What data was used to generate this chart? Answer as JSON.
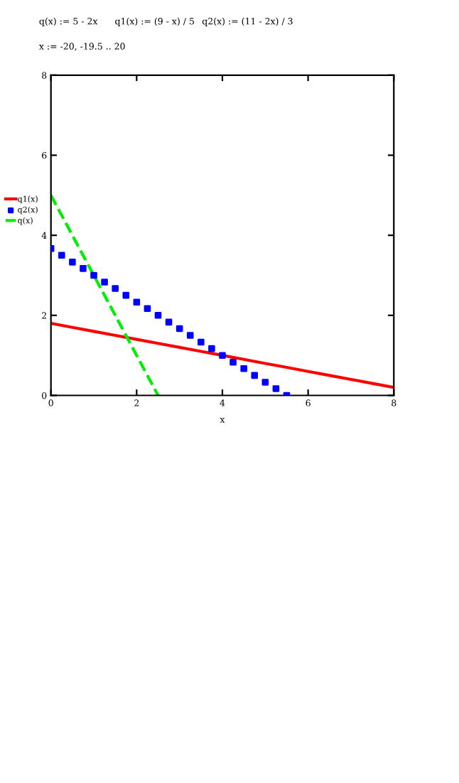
{
  "chart_data": {
    "type": "line",
    "xlabel": "x",
    "annotations": [
      "q(x) := 5 - 2x",
      "q1(x) := (9 - x) / 5",
      "q2(x) := (11 - 2x) / 3",
      "x := -20, -19.5 .. 20"
    ],
    "xlim": [
      0,
      8
    ],
    "ylim": [
      0,
      8
    ],
    "xticks": [
      0,
      2,
      4,
      6,
      8
    ],
    "yticks": [
      0,
      2,
      4,
      6,
      8
    ],
    "grid": false,
    "legend": "left",
    "series": [
      {
        "name": "q1(x)",
        "color": "#ff0000",
        "line_style": "solid",
        "marker": "none",
        "x": [
          0,
          0.5,
          1,
          1.5,
          2,
          2.5,
          3,
          3.5,
          4,
          4.5,
          5,
          5.5,
          6,
          6.5,
          7,
          7.5,
          8
        ],
        "values": [
          1.8,
          1.7,
          1.6,
          1.5,
          1.4,
          1.3,
          1.2,
          1.1,
          1.0,
          0.9,
          0.8,
          0.7,
          0.6,
          0.5,
          0.4,
          0.3,
          0.2
        ]
      },
      {
        "name": "q2(x)",
        "type": "scatter",
        "color": "#0000ff",
        "marker": "square",
        "x": [
          0,
          0.25,
          0.5,
          0.75,
          1,
          1.25,
          1.5,
          1.75,
          2,
          2.25,
          2.5,
          2.75,
          3,
          3.25,
          3.5,
          3.75,
          4,
          4.25,
          4.5,
          4.75,
          5,
          5.25,
          5.5
        ],
        "values": [
          3.67,
          3.5,
          3.33,
          3.17,
          3.0,
          2.83,
          2.67,
          2.5,
          2.33,
          2.17,
          2.0,
          1.83,
          1.67,
          1.5,
          1.33,
          1.17,
          1.0,
          0.83,
          0.67,
          0.5,
          0.33,
          0.17,
          0.0
        ]
      },
      {
        "name": "q(x)",
        "type": "line",
        "color": "#00ee00",
        "line_style": "dashed",
        "marker": "none",
        "x": [
          0,
          0.5,
          1,
          1.5,
          2,
          2.5
        ],
        "values": [
          5,
          4,
          3,
          2,
          1,
          0
        ]
      }
    ]
  }
}
